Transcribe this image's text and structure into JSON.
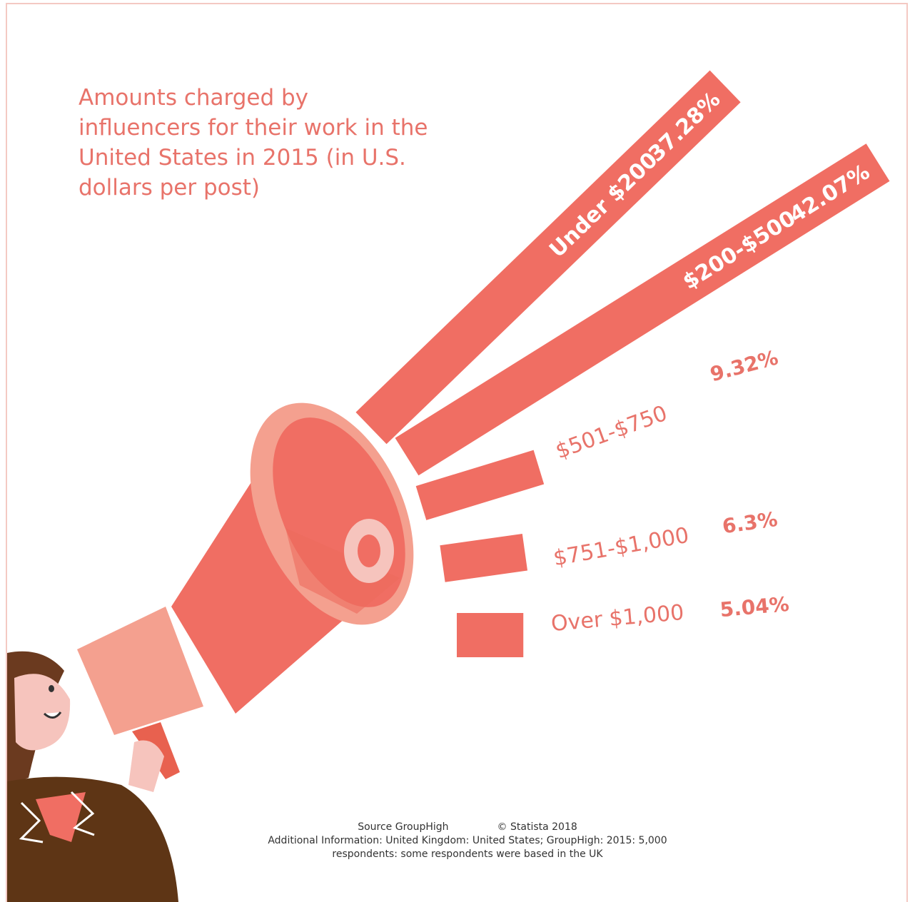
{
  "chart_data": {
    "type": "megaphone-bar",
    "title": "Amounts charged by influencers for their work in the United States in 2015 (in U.S. dollars per post)",
    "categories": [
      "Under $200",
      "$200-$500",
      "$501-$750",
      "$751-$1,000",
      "Over $1,000"
    ],
    "values": [
      37.28,
      42.07,
      9.32,
      6.3,
      5.04
    ],
    "value_labels": [
      "37.28%",
      "42.07%",
      "9.32%",
      "6.3%",
      "5.04%"
    ],
    "color": "#f06e63",
    "source": "Source GroupHigh",
    "copyright": "© Statista 2018",
    "note": "Additional Information: United Kingdom: United States; GroupHigh: 2015: 5,000 respondents: some respondents were based in the UK"
  }
}
